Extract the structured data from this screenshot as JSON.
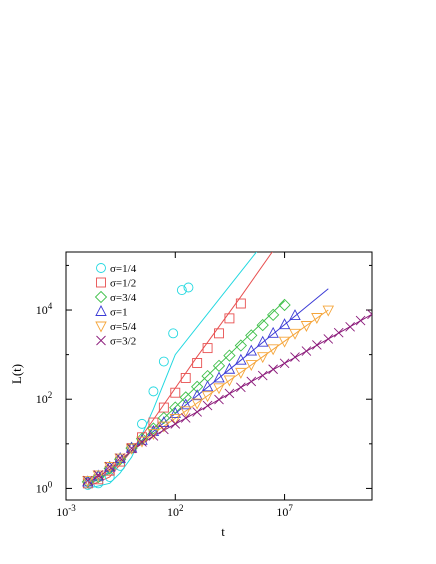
{
  "chart_data": {
    "type": "scatter",
    "title": "",
    "xlabel": "t",
    "ylabel": "L(t)",
    "x_scale": "log",
    "y_scale": "log",
    "xlim": [
      0.001,
      100000000000
    ],
    "ylim": [
      0.55,
      200000
    ],
    "x_ticks": [
      {
        "value": 0.001,
        "base": "10",
        "exp": "-3"
      },
      {
        "value": 100,
        "base": "10",
        "exp": "2"
      },
      {
        "value": 10000000,
        "base": "10",
        "exp": "7"
      }
    ],
    "y_ticks": [
      {
        "value": 1,
        "base": "10",
        "exp": "0"
      },
      {
        "value": 100,
        "base": "10",
        "exp": "2"
      },
      {
        "value": 10000,
        "base": "10",
        "exp": "4"
      }
    ],
    "y_minor_ticks": [
      10,
      1000,
      100000
    ],
    "grid": false,
    "legend_position": "top-left",
    "series": [
      {
        "name": "σ=1/4",
        "color": "#22d8e0",
        "marker": "circle",
        "points": [
          [
            0.01,
            1.2
          ],
          [
            0.03,
            1.3
          ],
          [
            0.1,
            1.8
          ],
          [
            0.3,
            3.2
          ],
          [
            1,
            8
          ],
          [
            3,
            28
          ],
          [
            10,
            150
          ],
          [
            30,
            700
          ],
          [
            80,
            3000
          ],
          [
            200,
            28000
          ],
          [
            400,
            32000
          ]
        ],
        "fit": [
          [
            0.01,
            1.0
          ],
          [
            0.1,
            1.3
          ],
          [
            0.3,
            2.2
          ],
          [
            1,
            5
          ],
          [
            3,
            16
          ],
          [
            10,
            60
          ],
          [
            100,
            1000
          ],
          [
            1000000,
            300000
          ]
        ]
      },
      {
        "name": "σ=1/2",
        "color": "#e85050",
        "marker": "square",
        "points": [
          [
            0.01,
            1.3
          ],
          [
            0.03,
            1.6
          ],
          [
            0.1,
            2.5
          ],
          [
            0.3,
            4
          ],
          [
            1,
            8
          ],
          [
            3,
            14
          ],
          [
            10,
            30
          ],
          [
            30,
            65
          ],
          [
            100,
            140
          ],
          [
            300,
            300
          ],
          [
            1000,
            650
          ],
          [
            3000,
            1400
          ],
          [
            10000,
            3000
          ],
          [
            30000,
            6500
          ],
          [
            100000,
            14000
          ]
        ],
        "fit": [
          [
            0.01,
            1.1
          ],
          [
            0.1,
            1.8
          ],
          [
            1,
            7
          ],
          [
            10,
            35
          ],
          [
            1000,
            900
          ],
          [
            100000,
            20000
          ],
          [
            10000000,
            500000
          ]
        ]
      },
      {
        "name": "σ=3/4",
        "color": "#3fc04a",
        "marker": "diamond",
        "points": [
          [
            0.01,
            1.4
          ],
          [
            0.03,
            1.8
          ],
          [
            0.1,
            2.8
          ],
          [
            0.3,
            4.5
          ],
          [
            1,
            8
          ],
          [
            3,
            13
          ],
          [
            10,
            22
          ],
          [
            30,
            38
          ],
          [
            100,
            65
          ],
          [
            300,
            110
          ],
          [
            1000,
            190
          ],
          [
            3000,
            330
          ],
          [
            10000,
            560
          ],
          [
            30000,
            950
          ],
          [
            100000,
            1600
          ],
          [
            300000,
            2700
          ],
          [
            1000000,
            4600
          ],
          [
            3000000,
            7800
          ],
          [
            10000000,
            13000
          ]
        ],
        "fit": [
          [
            0.01,
            1.2
          ],
          [
            0.1,
            2.2
          ],
          [
            1,
            7
          ],
          [
            10,
            22
          ],
          [
            1000,
            200
          ],
          [
            100000,
            1800
          ],
          [
            10000000,
            16000
          ]
        ]
      },
      {
        "name": "σ=1",
        "color": "#3b3bd6",
        "marker": "triangle-up",
        "points": [
          [
            0.01,
            1.4
          ],
          [
            0.03,
            1.9
          ],
          [
            0.1,
            3
          ],
          [
            0.3,
            4.7
          ],
          [
            1,
            8
          ],
          [
            3,
            12
          ],
          [
            10,
            19
          ],
          [
            30,
            30
          ],
          [
            100,
            48
          ],
          [
            300,
            75
          ],
          [
            1000,
            120
          ],
          [
            3000,
            190
          ],
          [
            10000,
            300
          ],
          [
            30000,
            470
          ],
          [
            100000,
            750
          ],
          [
            300000,
            1200
          ],
          [
            1000000,
            1900
          ],
          [
            3000000,
            3000
          ],
          [
            10000000,
            4700
          ],
          [
            30000000,
            7500
          ]
        ],
        "fit": [
          [
            0.01,
            1.2
          ],
          [
            0.1,
            2.4
          ],
          [
            1,
            7
          ],
          [
            10,
            19
          ],
          [
            1000,
            120
          ],
          [
            100000,
            750
          ],
          [
            10000000,
            4700
          ],
          [
            1000000000,
            30000
          ]
        ]
      },
      {
        "name": "σ=5/4",
        "color": "#f5a53a",
        "marker": "triangle-down",
        "points": [
          [
            0.01,
            1.5
          ],
          [
            0.03,
            2
          ],
          [
            0.1,
            3.1
          ],
          [
            0.3,
            4.8
          ],
          [
            1,
            8
          ],
          [
            3,
            11.5
          ],
          [
            10,
            17
          ],
          [
            30,
            25
          ],
          [
            100,
            37
          ],
          [
            300,
            55
          ],
          [
            1000,
            82
          ],
          [
            3000,
            120
          ],
          [
            10000,
            180
          ],
          [
            30000,
            270
          ],
          [
            100000,
            400
          ],
          [
            300000,
            600
          ],
          [
            1000000,
            900
          ],
          [
            3000000,
            1350
          ],
          [
            10000000,
            2000
          ],
          [
            30000000,
            3000
          ],
          [
            100000000,
            4500
          ],
          [
            300000000,
            6800
          ],
          [
            1000000000,
            10000
          ]
        ],
        "fit": [
          [
            0.01,
            1.3
          ],
          [
            0.1,
            2.6
          ],
          [
            1,
            7
          ],
          [
            10,
            17
          ],
          [
            1000,
            82
          ],
          [
            100000,
            400
          ],
          [
            10000000,
            2000
          ],
          [
            1000000000,
            10000
          ]
        ]
      },
      {
        "name": "σ=3/2",
        "color": "#8b1a7a",
        "marker": "cross",
        "points": [
          [
            0.01,
            1.5
          ],
          [
            0.03,
            2
          ],
          [
            0.1,
            3.1
          ],
          [
            0.3,
            4.8
          ],
          [
            1,
            8
          ],
          [
            3,
            11
          ],
          [
            10,
            15
          ],
          [
            30,
            21
          ],
          [
            100,
            28
          ],
          [
            300,
            38
          ],
          [
            1000,
            52
          ],
          [
            3000,
            72
          ],
          [
            10000,
            98
          ],
          [
            30000,
            135
          ],
          [
            100000,
            185
          ],
          [
            300000,
            250
          ],
          [
            1000000,
            340
          ],
          [
            3000000,
            470
          ],
          [
            10000000,
            640
          ],
          [
            30000000,
            880
          ],
          [
            100000000,
            1200
          ],
          [
            300000000,
            1650
          ],
          [
            1000000000,
            2250
          ],
          [
            3000000000,
            3100
          ],
          [
            10000000000,
            4200
          ],
          [
            30000000000,
            5800
          ],
          [
            100000000000,
            8000
          ]
        ],
        "fit": [
          [
            0.01,
            1.3
          ],
          [
            0.1,
            2.7
          ],
          [
            1,
            7
          ],
          [
            10,
            15
          ],
          [
            1000,
            52
          ],
          [
            100000,
            185
          ],
          [
            10000000,
            640
          ],
          [
            1000000000,
            2250
          ],
          [
            100000000000,
            8000
          ]
        ]
      }
    ]
  }
}
